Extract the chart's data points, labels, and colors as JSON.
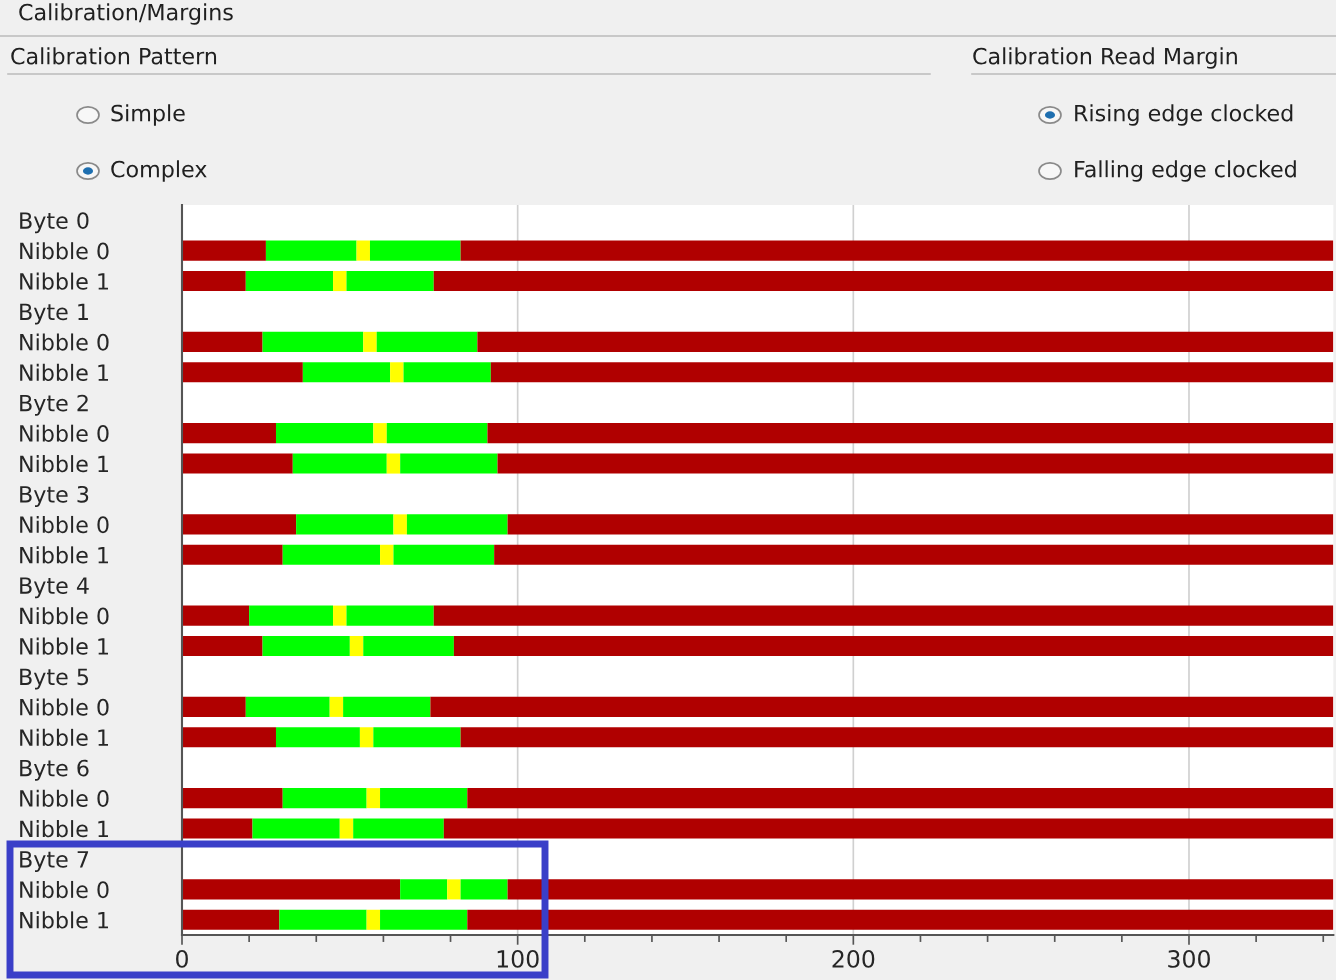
{
  "chart_data": {
    "type": "bar",
    "orientation": "horizontal",
    "stacked": true,
    "annotations": [
      "Calibration/Margins",
      "Calibration Pattern",
      "Simple",
      "Complex",
      "Calibration Read Margin",
      "Rising edge clocked",
      "Falling edge clocked"
    ],
    "categories": [
      "Byte 0",
      "Nibble 0",
      "Nibble 1",
      "Byte 1",
      "Nibble 0",
      "Nibble 1",
      "Byte 2",
      "Nibble 0",
      "Nibble 1",
      "Byte 3",
      "Nibble 0",
      "Nibble 1",
      "Byte 4",
      "Nibble 0",
      "Nibble 1",
      "Byte 5",
      "Nibble 0",
      "Nibble 1",
      "Byte 6",
      "Nibble 0",
      "Nibble 1",
      "Byte 7",
      "Nibble 0",
      "Nibble 1"
    ],
    "series": [
      {
        "color": "#b00000",
        "values": [
          null,
          25,
          19,
          null,
          24,
          36,
          null,
          28,
          33,
          null,
          34,
          30,
          null,
          20,
          24,
          null,
          19,
          28,
          null,
          30,
          21,
          null,
          65,
          29
        ]
      },
      {
        "color": "#00ff00",
        "values": [
          null,
          27,
          26,
          null,
          30,
          26,
          null,
          29,
          28,
          null,
          29,
          29,
          null,
          25,
          26,
          null,
          25,
          25,
          null,
          25,
          26,
          null,
          14,
          26
        ]
      },
      {
        "color": "#ffff00",
        "values": [
          null,
          4,
          4,
          null,
          4,
          4,
          null,
          4,
          4,
          null,
          4,
          4,
          null,
          4,
          4,
          null,
          4,
          4,
          null,
          4,
          4,
          null,
          4,
          4
        ]
      },
      {
        "color": "#00ff00",
        "values": [
          null,
          27,
          26,
          null,
          30,
          26,
          null,
          30,
          29,
          null,
          30,
          30,
          null,
          26,
          27,
          null,
          26,
          26,
          null,
          26,
          27,
          null,
          14,
          26
        ]
      },
      {
        "color": "#b00000",
        "values": [
          null,
          260,
          268,
          null,
          255,
          251,
          null,
          252,
          249,
          null,
          246,
          250,
          null,
          268,
          262,
          null,
          269,
          260,
          null,
          258,
          265,
          null,
          246,
          258
        ]
      }
    ],
    "xlim": [
      0,
      343
    ],
    "xticks": [
      0,
      {
        "value": 20,
        "label": null
      },
      {
        "value": 40,
        "label": null
      },
      {
        "value": 60,
        "label": null
      },
      {
        "value": 80,
        "label": null
      },
      100,
      {
        "value": 120,
        "label": null
      },
      {
        "value": 140,
        "label": null
      },
      {
        "value": 160,
        "label": null
      },
      {
        "value": 180,
        "label": null
      },
      200,
      {
        "value": 220,
        "label": null
      },
      {
        "value": 240,
        "label": null
      },
      {
        "value": 260,
        "label": null
      },
      {
        "value": 280,
        "label": null
      },
      300,
      {
        "value": 320,
        "label": null
      },
      {
        "value": 340,
        "label": null
      }
    ],
    "grid": "x",
    "legend": false
  }
}
